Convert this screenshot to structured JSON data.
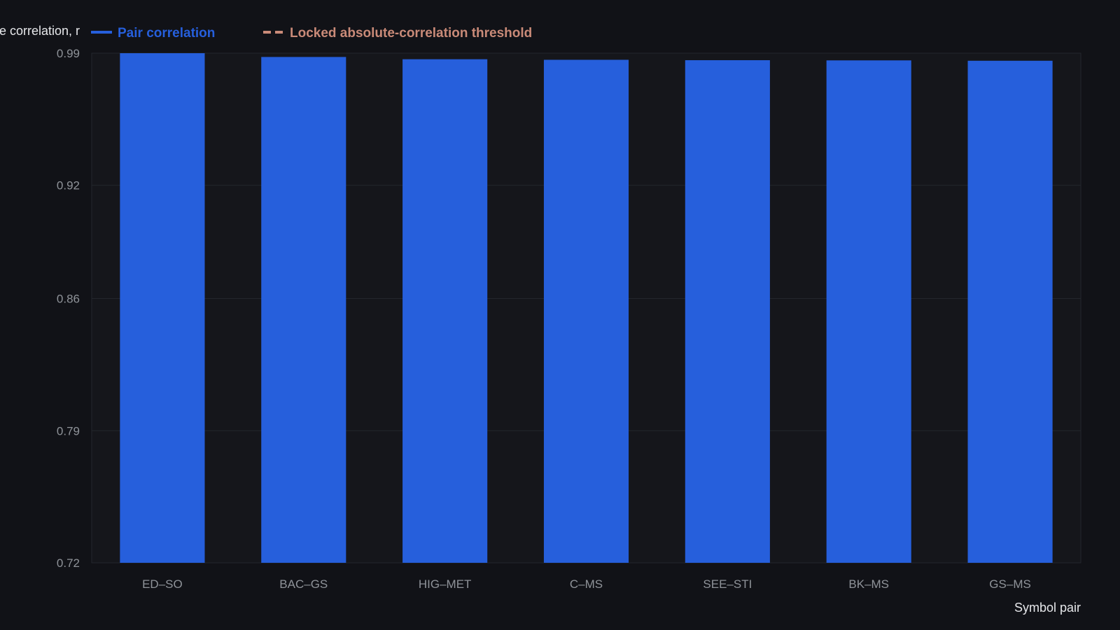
{
  "chart_data": {
    "type": "bar",
    "categories": [
      "ED–SO",
      "BAC–GS",
      "HIG–MET",
      "C–MS",
      "SEE–STI",
      "BK–MS",
      "GS–MS"
    ],
    "series": [
      {
        "name": "Pair correlation",
        "values": [
          0.99,
          0.988,
          0.9868,
          0.9865,
          0.9863,
          0.9862,
          0.986
        ],
        "color": "#265fdc"
      }
    ],
    "threshold_legend": {
      "name": "Locked absolute-correlation threshold",
      "color": "#c98a78",
      "style": "dashed"
    },
    "ylabel": "Absolute correlation, r",
    "xlabel": "Symbol pair",
    "ylim": [
      0.72,
      0.99
    ],
    "yticks": [
      0.72,
      0.79,
      0.86,
      0.92,
      0.99
    ],
    "ytick_labels": [
      "0.72",
      "0.79",
      "0.86",
      "0.92",
      "0.99"
    ],
    "grid": true,
    "legend_position": "top-left",
    "colors": {
      "background": "#111217",
      "plot_background": "#15161b",
      "grid": "#24262c",
      "tick_text": "#8f9399",
      "title_text": "#e6e7ea"
    }
  }
}
